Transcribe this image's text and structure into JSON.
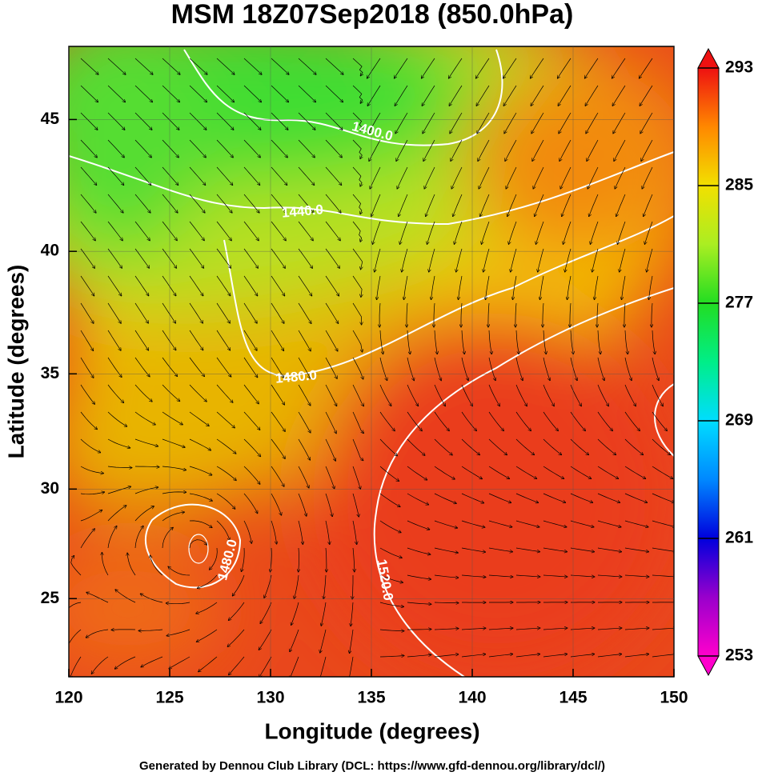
{
  "chart_data": {
    "type": "map",
    "title": "MSM 18Z07Sep2018 (850.0hPa)",
    "x_label": "Longitude (degrees)",
    "y_label": "Latitude  (degrees)",
    "projection": "mercator",
    "xlim": [
      120,
      150
    ],
    "xticks": [
      120,
      125,
      130,
      135,
      140,
      145,
      150
    ],
    "ylim": [
      21.3,
      47.6
    ],
    "yticks": [
      25,
      30,
      35,
      40,
      45
    ],
    "grid": true,
    "colorbar": {
      "lim": [
        253,
        293
      ],
      "ticks": [
        253,
        261,
        269,
        277,
        285,
        293
      ],
      "colors": [
        "#ff00cc",
        "#9900cc",
        "#0000dd",
        "#0088ff",
        "#00ddff",
        "#00ee88",
        "#22dd22",
        "#aaee22",
        "#f2e000",
        "#ff8800",
        "#ee1111"
      ]
    },
    "contour_labels": [
      "1400.0",
      "1440.0",
      "1480.0",
      "1480.0",
      "1520.0"
    ],
    "footer": "Generated by Dennou Club Library (DCL: https://www.gfd-dennou.org/library/dcl/)"
  }
}
